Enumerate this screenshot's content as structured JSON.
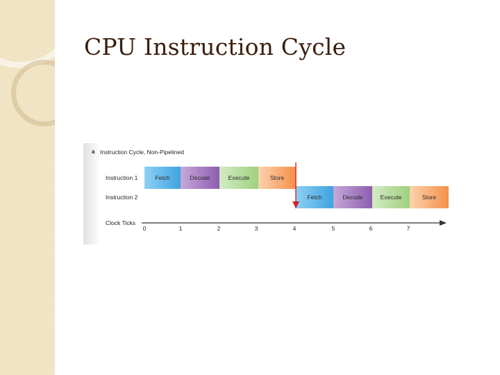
{
  "slide": {
    "title": "CPU Instruction Cycle"
  },
  "diagram": {
    "part_letter": "a",
    "part_title": "Instruction Cycle, Non-Pipelined",
    "rows": [
      {
        "label": "Instruction 1",
        "stages": [
          {
            "label": "Fetch",
            "kind": "fetch"
          },
          {
            "label": "Decode",
            "kind": "decode"
          },
          {
            "label": "Execute",
            "kind": "execute"
          },
          {
            "label": "Store",
            "kind": "store"
          }
        ]
      },
      {
        "label": "Instruction 2",
        "stages": [
          {
            "label": "Fetch",
            "kind": "fetch"
          },
          {
            "label": "Decode",
            "kind": "decode"
          },
          {
            "label": "Execute",
            "kind": "execute"
          },
          {
            "label": "Store",
            "kind": "store"
          }
        ]
      }
    ],
    "axis_label": "Clock Ticks",
    "ticks": [
      "0",
      "1",
      "2",
      "3",
      "4",
      "5",
      "6",
      "7"
    ],
    "colors": {
      "fetch": "#3fa3e0",
      "decode": "#8e5db0",
      "execute": "#9fd17e",
      "store": "#f59049",
      "handoff_arrow": "#d0202a"
    }
  }
}
